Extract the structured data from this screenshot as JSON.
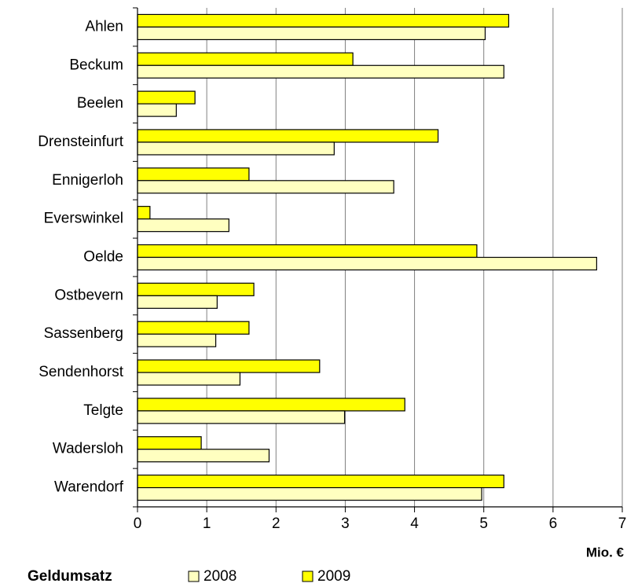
{
  "chart_data": {
    "type": "barh",
    "x_label": "Mio. €",
    "legend_title": "Geldumsatz",
    "categories": [
      "Ahlen",
      "Beckum",
      "Beelen",
      "Drensteinfurt",
      "Ennigerloh",
      "Everswinkel",
      "Oelde",
      "Ostbevern",
      "Sassenberg",
      "Sendenhorst",
      "Telgte",
      "Wadersloh",
      "Warendorf"
    ],
    "series": [
      {
        "name": "2008",
        "color": "#ffffc0",
        "values": [
          5.02,
          5.29,
          0.56,
          2.84,
          3.7,
          1.32,
          6.63,
          1.15,
          1.13,
          1.48,
          2.99,
          1.9,
          4.97
        ]
      },
      {
        "name": "2009",
        "color": "#ffff00",
        "values": [
          5.36,
          3.11,
          0.83,
          4.34,
          1.61,
          0.18,
          4.9,
          1.68,
          1.61,
          2.63,
          3.86,
          0.92,
          5.29
        ]
      }
    ],
    "xlim": [
      0,
      7
    ],
    "xticks": [
      0,
      1,
      2,
      3,
      4,
      5,
      6,
      7
    ],
    "grid": true,
    "legend": "bottom"
  }
}
